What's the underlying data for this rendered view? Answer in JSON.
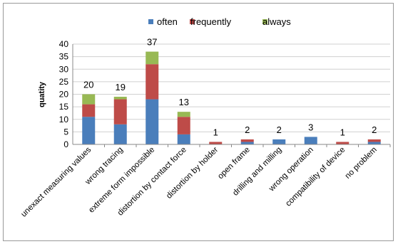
{
  "chart_data": {
    "type": "bar",
    "stacked": true,
    "title": "",
    "xlabel": "",
    "ylabel": "quatity",
    "ylim": [
      0,
      40
    ],
    "ytick_step": 5,
    "yticks": [
      "0",
      "5",
      "10",
      "15",
      "20",
      "25",
      "30",
      "35",
      "40"
    ],
    "grid": true,
    "legend_position": "top",
    "categories": [
      "unexact measuring values",
      "wrong tracing",
      "extreme form impossible",
      "distortion by contact force",
      "distortion by holder",
      "open frame",
      "drilling and milling",
      "wrong operation",
      "compatibility of device",
      "no problem"
    ],
    "series": [
      {
        "name": "often",
        "color": "#4a7ebb",
        "values": [
          11,
          8,
          18,
          4,
          0,
          1,
          2,
          3,
          0,
          1
        ]
      },
      {
        "name": "frequently",
        "color": "#be4b48",
        "values": [
          5,
          10,
          14,
          7,
          1,
          1,
          0,
          0,
          1,
          1
        ]
      },
      {
        "name": "always",
        "color": "#98b954",
        "values": [
          4,
          1,
          5,
          2,
          0,
          0,
          0,
          0,
          0,
          0
        ]
      }
    ],
    "totals": [
      "20",
      "19",
      "37",
      "13",
      "1",
      "2",
      "2",
      "3",
      "1",
      "2"
    ]
  }
}
